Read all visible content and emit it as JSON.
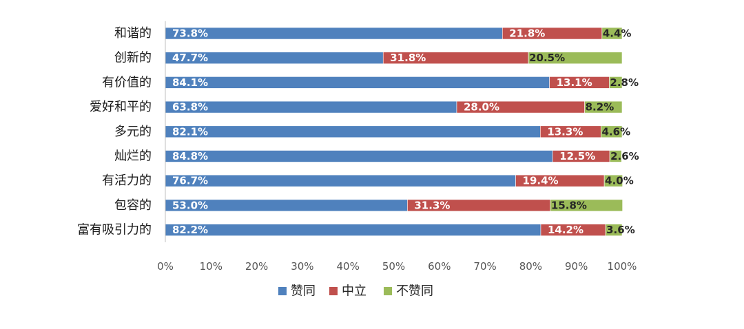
{
  "chart_data": {
    "type": "bar",
    "orientation": "horizontal",
    "stacked": true,
    "categories": [
      "和谐的",
      "创新的",
      "有价值的",
      "爱好和平的",
      "多元的",
      "灿烂的",
      "有活力的",
      "包容的",
      "富有吸引力的"
    ],
    "series": [
      {
        "name": "赞同",
        "color": "#4F81BD",
        "values": [
          73.8,
          47.7,
          84.1,
          63.8,
          82.1,
          84.8,
          76.7,
          53.0,
          82.2
        ],
        "labels": [
          "73.8%",
          "47.7%",
          "84.1%",
          "63.8%",
          "82.1%",
          "84.8%",
          "76.7%",
          "53.0%",
          "82.2%"
        ]
      },
      {
        "name": "中立",
        "color": "#C0504D",
        "values": [
          21.8,
          31.8,
          13.1,
          28.0,
          13.3,
          12.5,
          19.4,
          31.3,
          14.2
        ],
        "labels": [
          "21.8%",
          "31.8%",
          "13.1%",
          "28.0%",
          "13.3%",
          "12.5%",
          "19.4%",
          "31.3%",
          "14.2%"
        ]
      },
      {
        "name": "不赞同",
        "color": "#9BBB59",
        "values": [
          4.4,
          20.5,
          2.8,
          8.2,
          4.6,
          2.6,
          4.0,
          15.8,
          3.6
        ],
        "labels": [
          "4.4%",
          "20.5%",
          "2.8%",
          "8.2%",
          "4.6%",
          "2.6%",
          "4.0%",
          "15.8%",
          "3.6%"
        ]
      }
    ],
    "x_ticks": [
      "0%",
      "10%",
      "20%",
      "30%",
      "40%",
      "50%",
      "60%",
      "70%",
      "80%",
      "90%",
      "100%"
    ],
    "xlim": [
      0,
      100
    ],
    "grid": false,
    "legend_position": "bottom"
  }
}
